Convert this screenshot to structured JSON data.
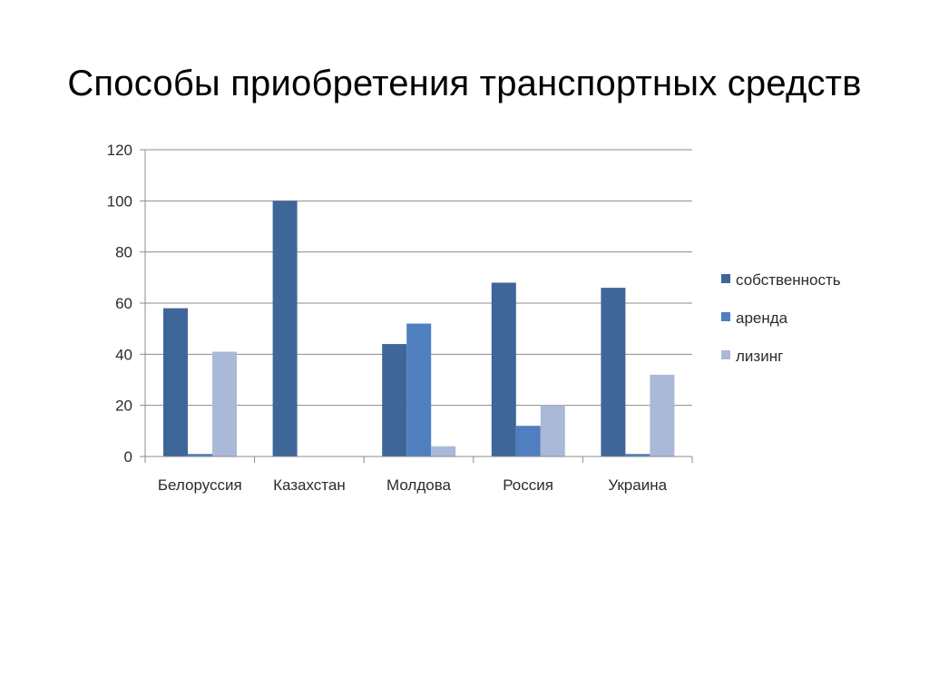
{
  "title": "Способы приобретения транспортных средств",
  "chart_data": {
    "type": "bar",
    "categories": [
      "Белоруссия",
      "Казахстан",
      "Молдова",
      "Россия",
      "Украина"
    ],
    "series": [
      {
        "name": "собственность",
        "color": "#3F6699",
        "values": [
          58,
          100,
          44,
          68,
          66
        ]
      },
      {
        "name": "аренда",
        "color": "#4F7FBF",
        "values": [
          1,
          0,
          52,
          12,
          1
        ]
      },
      {
        "name": "лизинг",
        "color": "#AAB9D8",
        "values": [
          41,
          0,
          4,
          20,
          32
        ]
      }
    ],
    "ylim": [
      0,
      120
    ],
    "yticks": [
      0,
      20,
      40,
      60,
      80,
      100,
      120
    ],
    "grid": true,
    "legend": "right",
    "xlabel": "",
    "ylabel": ""
  }
}
